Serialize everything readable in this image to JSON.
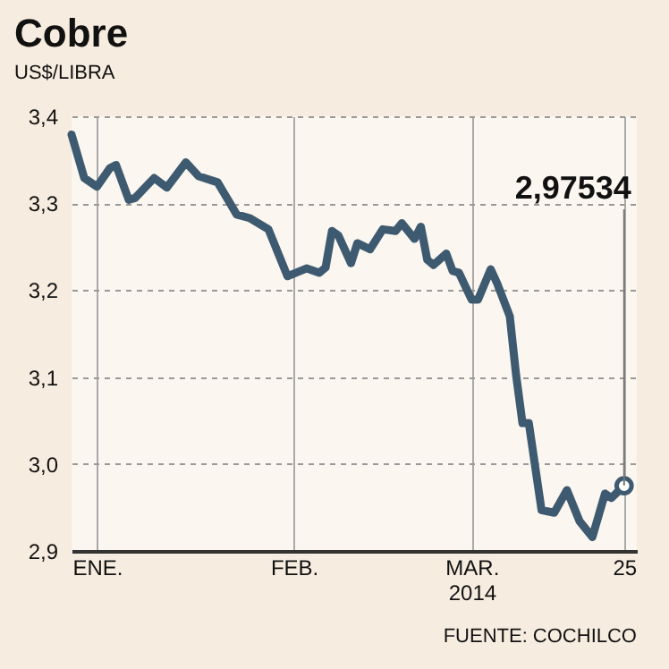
{
  "chart_data": {
    "type": "line",
    "title": "Cobre",
    "subtitle": "US$/LIBRA",
    "x": [
      "2013-12-28",
      "2013-12-30",
      "2014-01-01",
      "2014-01-03",
      "2014-01-04",
      "2014-01-06",
      "2014-01-07",
      "2014-01-10",
      "2014-01-12",
      "2014-01-15",
      "2014-01-17",
      "2014-01-20",
      "2014-01-23",
      "2014-01-25",
      "2014-01-28",
      "2014-01-31",
      "2014-02-03",
      "2014-02-05",
      "2014-02-06",
      "2014-02-07",
      "2014-02-08",
      "2014-02-10",
      "2014-02-11",
      "2014-02-13",
      "2014-02-15",
      "2014-02-17",
      "2014-02-18",
      "2014-02-20",
      "2014-02-21",
      "2014-02-22",
      "2014-02-23",
      "2014-02-25",
      "2014-02-26",
      "2014-02-27",
      "2014-03-01",
      "2014-03-02",
      "2014-03-04",
      "2014-03-05",
      "2014-03-07",
      "2014-03-08",
      "2014-03-09",
      "2014-03-10",
      "2014-03-12",
      "2014-03-14",
      "2014-03-16",
      "2014-03-18",
      "2014-03-20",
      "2014-03-22",
      "2014-03-23",
      "2014-03-25"
    ],
    "series": [
      {
        "color": "#3e5a70",
        "values": [
          3.379,
          3.329,
          3.319,
          3.34,
          3.344,
          3.304,
          3.306,
          3.329,
          3.318,
          3.347,
          3.331,
          3.324,
          3.287,
          3.283,
          3.27,
          3.216,
          3.225,
          3.22,
          3.226,
          3.268,
          3.263,
          3.231,
          3.254,
          3.247,
          3.27,
          3.268,
          3.277,
          3.259,
          3.273,
          3.235,
          3.229,
          3.242,
          3.222,
          3.22,
          3.189,
          3.189,
          3.224,
          3.208,
          3.17,
          3.102,
          3.047,
          3.047,
          2.947,
          2.944,
          2.97,
          2.934,
          2.916,
          2.966,
          2.961,
          2.975
        ]
      },
      {
        "type": "scatter",
        "color": "#3e5a70",
        "x": [
          "2014-03-25"
        ],
        "values": [
          2.975
        ]
      }
    ],
    "xlim": [
      "2013-12-28",
      "2014-03-27"
    ],
    "xticks": [
      {
        "value": "2014-01-01",
        "label": "ENE."
      },
      {
        "value": "2014-02-01",
        "label": "FEB."
      },
      {
        "value": "2014-03-01",
        "label": "MAR.\n2014"
      },
      {
        "value": "2014-03-25",
        "label": "25"
      }
    ],
    "ylim": [
      2.9,
      3.4
    ],
    "yticks": [
      {
        "value": 2.9,
        "label": "2,9"
      },
      {
        "value": 3.0,
        "label": "3,0"
      },
      {
        "value": 3.1,
        "label": "3,1"
      },
      {
        "value": 3.2,
        "label": "3,2"
      },
      {
        "value": 3.3,
        "label": "3,3"
      },
      {
        "value": 3.4,
        "label": "3,4"
      }
    ],
    "grid": true,
    "line_style": "solid",
    "annotations": [
      {
        "text": "2,97534",
        "x": "2014-03-25",
        "y": 2.97534
      },
      "FUENTE: COCHILCO"
    ]
  }
}
